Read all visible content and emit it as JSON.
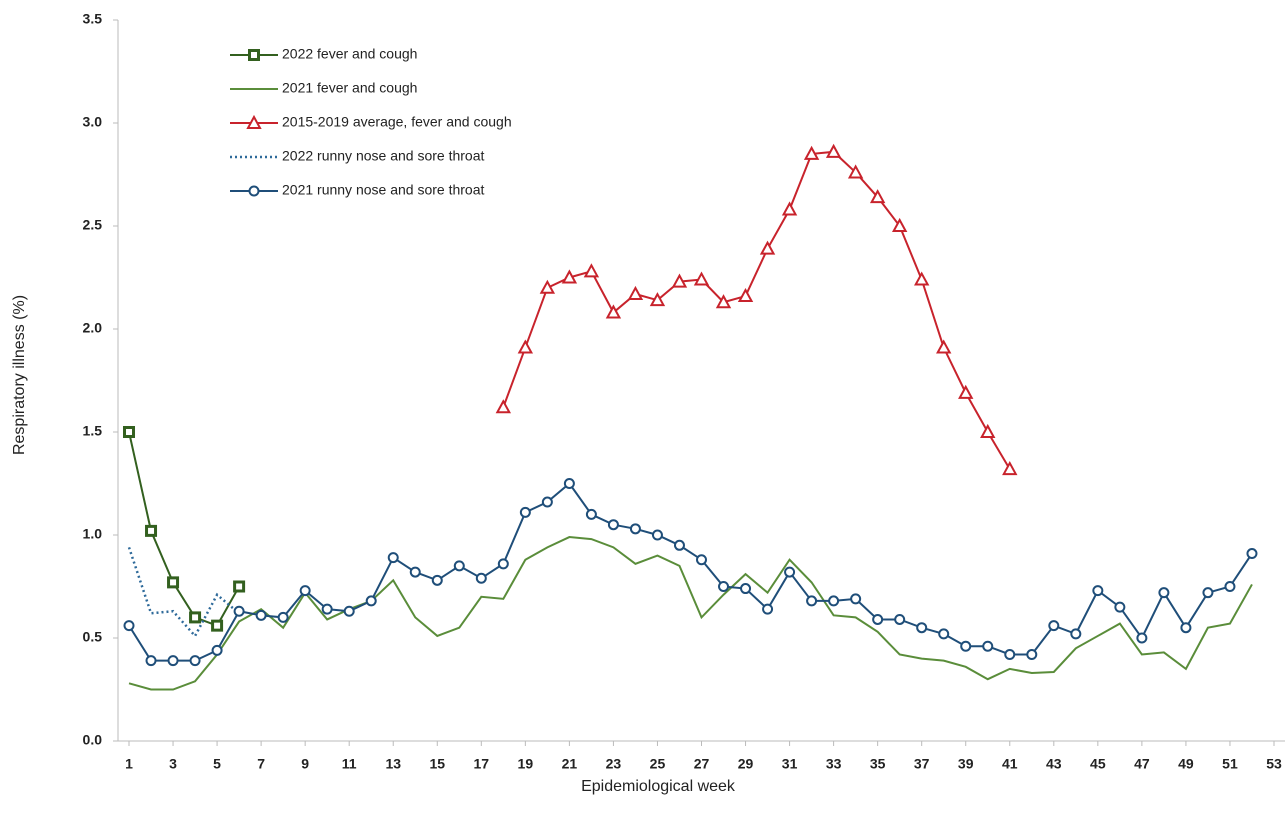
{
  "chart_data": {
    "type": "line",
    "x_label": "Epidemiological week",
    "y_label": "Respiratory illness (%)",
    "xlim": [
      0.5,
      53.5
    ],
    "xticks": [
      1,
      3,
      5,
      7,
      9,
      11,
      13,
      15,
      17,
      19,
      21,
      23,
      25,
      27,
      29,
      31,
      33,
      35,
      37,
      39,
      41,
      43,
      45,
      47,
      49,
      51,
      53
    ],
    "ylim": [
      0,
      3.5
    ],
    "yticks": [
      {
        "value": 0,
        "label": "0.0"
      },
      {
        "value": 0.5,
        "label": "0.5"
      },
      {
        "value": 1,
        "label": "1.0"
      },
      {
        "value": 1.5,
        "label": "1.5"
      },
      {
        "value": 2,
        "label": "2.0"
      },
      {
        "value": 2.5,
        "label": "2.5"
      },
      {
        "value": 3,
        "label": "3.0"
      },
      {
        "value": 3.5,
        "label": "3.5"
      }
    ],
    "legend": "upper left",
    "series": [
      {
        "name": "2022 fever and cough",
        "color": "#33601f",
        "marker": "square",
        "dash": "solid",
        "x": [
          1,
          2,
          3,
          4,
          5,
          6
        ],
        "values": [
          1.5,
          1.02,
          0.77,
          0.6,
          0.56,
          0.75
        ]
      },
      {
        "name": "2021 fever and cough",
        "color": "#5a8d3a",
        "marker": "none",
        "dash": "solid",
        "x": [
          1,
          2,
          3,
          4,
          5,
          6,
          7,
          8,
          9,
          10,
          11,
          12,
          13,
          14,
          15,
          16,
          17,
          18,
          19,
          20,
          21,
          22,
          23,
          24,
          25,
          26,
          27,
          28,
          29,
          30,
          31,
          32,
          33,
          34,
          35,
          36,
          37,
          38,
          39,
          40,
          41,
          42,
          43,
          44,
          45,
          46,
          47,
          48,
          49,
          50,
          51,
          52
        ],
        "values": [
          0.28,
          0.25,
          0.25,
          0.29,
          0.42,
          0.58,
          0.64,
          0.55,
          0.72,
          0.59,
          0.64,
          0.68,
          0.78,
          0.6,
          0.51,
          0.55,
          0.7,
          0.69,
          0.88,
          0.94,
          0.99,
          0.98,
          0.94,
          0.86,
          0.9,
          0.85,
          0.6,
          0.71,
          0.81,
          0.72,
          0.88,
          0.77,
          0.61,
          0.6,
          0.53,
          0.42,
          0.4,
          0.39,
          0.36,
          0.3,
          0.35,
          0.33,
          0.335,
          0.45,
          0.51,
          0.57,
          0.42,
          0.43,
          0.35,
          0.55,
          0.57,
          0.76
        ]
      },
      {
        "name": "2015-2019 average, fever and cough",
        "color": "#c8232c",
        "marker": "triangle",
        "dash": "solid",
        "x": [
          18,
          19,
          20,
          21,
          22,
          23,
          24,
          25,
          26,
          27,
          28,
          29,
          30,
          31,
          32,
          33,
          34,
          35,
          36,
          37,
          38,
          39,
          40,
          41
        ],
        "values": [
          1.62,
          1.91,
          2.2,
          2.25,
          2.28,
          2.08,
          2.17,
          2.14,
          2.23,
          2.24,
          2.13,
          2.16,
          2.39,
          2.58,
          2.85,
          2.86,
          2.76,
          2.64,
          2.5,
          2.24,
          1.91,
          1.69,
          1.5,
          1.32
        ]
      },
      {
        "name": "2022 runny nose and sore throat",
        "color": "#2e6a9a",
        "marker": "none",
        "dash": "dotted",
        "x": [
          1,
          2,
          3,
          4,
          5,
          6
        ],
        "values": [
          0.94,
          0.62,
          0.63,
          0.51,
          0.71,
          0.62
        ]
      },
      {
        "name": "2021 runny nose and sore throat",
        "color": "#1f4e79",
        "marker": "circle",
        "dash": "solid",
        "x": [
          1,
          2,
          3,
          4,
          5,
          6,
          7,
          8,
          9,
          10,
          11,
          12,
          13,
          14,
          15,
          16,
          17,
          18,
          19,
          20,
          21,
          22,
          23,
          24,
          25,
          26,
          27,
          28,
          29,
          30,
          31,
          32,
          33,
          34,
          35,
          36,
          37,
          38,
          39,
          40,
          41,
          42,
          43,
          44,
          45,
          46,
          47,
          48,
          49,
          50,
          51,
          52
        ],
        "values": [
          0.56,
          0.39,
          0.39,
          0.39,
          0.44,
          0.63,
          0.61,
          0.6,
          0.73,
          0.64,
          0.63,
          0.68,
          0.89,
          0.82,
          0.78,
          0.85,
          0.79,
          0.86,
          1.11,
          1.16,
          1.25,
          1.1,
          1.05,
          1.03,
          1.0,
          0.95,
          0.88,
          0.75,
          0.74,
          0.64,
          0.82,
          0.68,
          0.68,
          0.69,
          0.59,
          0.59,
          0.55,
          0.52,
          0.46,
          0.46,
          0.42,
          0.42,
          0.56,
          0.52,
          0.73,
          0.65,
          0.5,
          0.72,
          0.55,
          0.72,
          0.75,
          0.91
        ]
      }
    ]
  }
}
